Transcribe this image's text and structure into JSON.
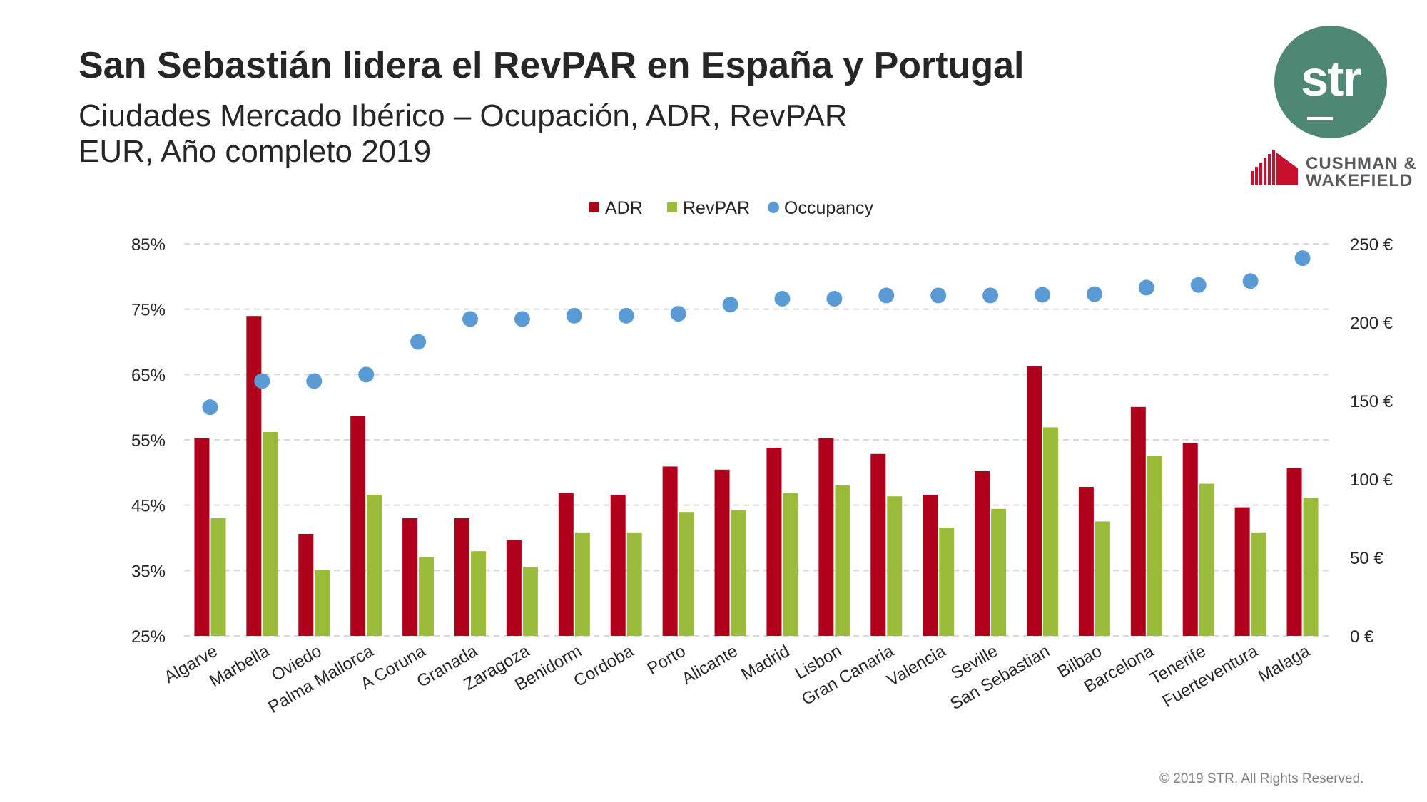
{
  "header": {
    "title": "San Sebastián lidera el RevPAR en España y Portugal",
    "subtitle_line1": "Ciudades Mercado Ibérico – Ocupación, ADR, RevPAR",
    "subtitle_line2": "EUR, Año completo 2019"
  },
  "logos": {
    "str_text": "str",
    "cw_line1": "CUSHMAN &",
    "cw_line2": "WAKEFIELD",
    "str_color": "#4e8774",
    "cw_color": "#c8102e"
  },
  "footer": {
    "copyright": "© 2019 STR. All Rights Reserved."
  },
  "chart_data": {
    "type": "bar",
    "categories": [
      "Algarve",
      "Marbella",
      "Oviedo",
      "Palma Mallorca",
      "A Coruna",
      "Granada",
      "Zaragoza",
      "Benidorm",
      "Cordoba",
      "Porto",
      "Alicante",
      "Madrid",
      "Lisbon",
      "Gran Canaria",
      "Valencia",
      "Seville",
      "San Sebastian",
      "Bilbao",
      "Barcelona",
      "Tenerife",
      "Fuerteventura",
      "Malaga"
    ],
    "series": [
      {
        "name": "ADR",
        "type": "bar",
        "axis": "right",
        "color": "#b0001b",
        "values": [
          126,
          204,
          65,
          140,
          75,
          75,
          61,
          91,
          90,
          108,
          106,
          120,
          126,
          116,
          90,
          105,
          172,
          95,
          146,
          123,
          82,
          107
        ]
      },
      {
        "name": "RevPAR",
        "type": "bar",
        "axis": "right",
        "color": "#9bbb3b",
        "values": [
          75,
          130,
          42,
          90,
          50,
          54,
          44,
          66,
          66,
          79,
          80,
          91,
          96,
          89,
          69,
          81,
          133,
          73,
          115,
          97,
          66,
          88
        ]
      },
      {
        "name": "Occupancy",
        "type": "scatter",
        "axis": "left",
        "color": "#5b9bd5",
        "values": [
          60,
          64,
          64,
          65,
          70,
          73.5,
          73.5,
          74,
          74,
          74.3,
          75.7,
          76.6,
          76.6,
          77.1,
          77.1,
          77.1,
          77.2,
          77.3,
          78.3,
          78.7,
          79.3,
          82.8
        ]
      }
    ],
    "y_left": {
      "ticks": [
        "85%",
        "75%",
        "65%",
        "55%",
        "45%",
        "35%",
        "25%"
      ],
      "lim": [
        25,
        85
      ]
    },
    "y_right": {
      "ticks": [
        "250 €",
        "200 €",
        "150 €",
        "100 €",
        "50 €",
        "0 €"
      ],
      "lim": [
        0,
        250
      ]
    },
    "legend": [
      "ADR",
      "RevPAR",
      "Occupancy"
    ],
    "legend_position": "top-center",
    "grid": "horizontal-dashed"
  }
}
